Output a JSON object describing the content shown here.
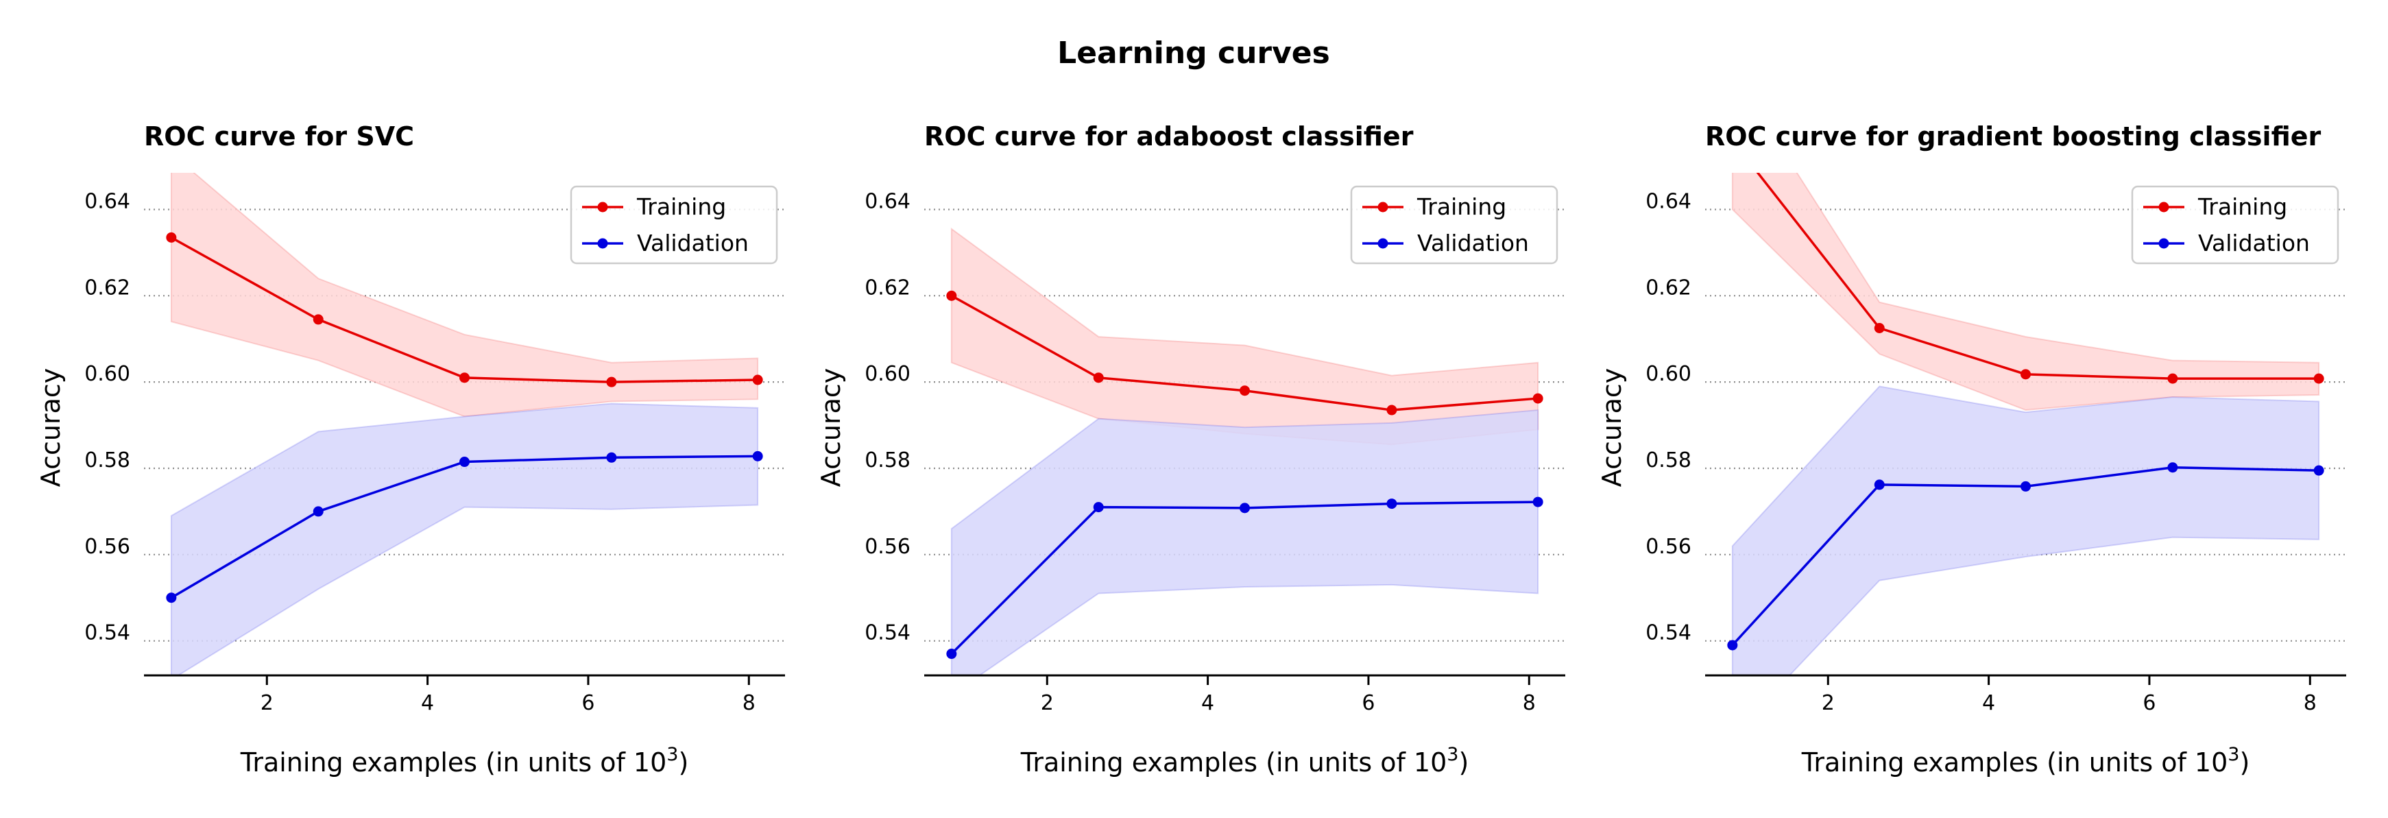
{
  "figure": {
    "title": "Learning curves"
  },
  "colors": {
    "training": "#e50000",
    "training_band": "#ffd6d6",
    "validation": "#0000e0",
    "validation_band": "#d6d6fb",
    "grid": "#8c8c8c",
    "axis": "#000000"
  },
  "chart_data": [
    {
      "type": "line",
      "title": "ROC curve for SVC",
      "xlabel": "Training examples (in units of 10",
      "xlabel_sup": "3",
      "xlabel_suffix": ")",
      "ylabel": "Accuracy",
      "xlim": [
        0.47,
        8.45
      ],
      "ylim": [
        0.532,
        0.6485
      ],
      "xticks": [
        2,
        4,
        6,
        8
      ],
      "yticks": [
        0.54,
        0.56,
        0.58,
        0.6,
        0.62,
        0.64
      ],
      "ytick_labels": [
        "0.54",
        "0.56",
        "0.58",
        "0.60",
        "0.62",
        "0.64"
      ],
      "grid": "horizontal dotted",
      "legend_position": "top-right",
      "x": [
        0.81,
        2.64,
        4.46,
        6.29,
        8.11
      ],
      "series": [
        {
          "name": "Training",
          "values": [
            0.6335,
            0.6145,
            0.601,
            0.6,
            0.6005
          ],
          "lower": [
            0.614,
            0.605,
            0.592,
            0.5955,
            0.596
          ],
          "upper": [
            0.653,
            0.624,
            0.611,
            0.6045,
            0.6055
          ]
        },
        {
          "name": "Validation",
          "values": [
            0.55,
            0.57,
            0.5815,
            0.5825,
            0.5828
          ],
          "lower": [
            0.531,
            0.552,
            0.571,
            0.5705,
            0.5715
          ],
          "upper": [
            0.569,
            0.5885,
            0.592,
            0.595,
            0.594
          ]
        }
      ]
    },
    {
      "type": "line",
      "title": "ROC curve for adaboost classifier",
      "xlabel": "Training examples (in units of 10",
      "xlabel_sup": "3",
      "xlabel_suffix": ")",
      "ylabel": "Accuracy",
      "xlim": [
        0.47,
        8.45
      ],
      "ylim": [
        0.532,
        0.6485
      ],
      "xticks": [
        2,
        4,
        6,
        8
      ],
      "yticks": [
        0.54,
        0.56,
        0.58,
        0.6,
        0.62,
        0.64
      ],
      "ytick_labels": [
        "0.54",
        "0.56",
        "0.58",
        "0.60",
        "0.62",
        "0.64"
      ],
      "grid": "horizontal dotted",
      "legend_position": "top-right",
      "x": [
        0.81,
        2.64,
        4.46,
        6.29,
        8.11
      ],
      "series": [
        {
          "name": "Training",
          "values": [
            0.62,
            0.601,
            0.598,
            0.5935,
            0.5962
          ],
          "lower": [
            0.6045,
            0.5915,
            0.588,
            0.5855,
            0.589
          ],
          "upper": [
            0.6355,
            0.6105,
            0.6085,
            0.6015,
            0.6045
          ]
        },
        {
          "name": "Validation",
          "values": [
            0.537,
            0.571,
            0.5708,
            0.5718,
            0.5722
          ],
          "lower": [
            0.5275,
            0.551,
            0.5525,
            0.553,
            0.551
          ],
          "upper": [
            0.566,
            0.5915,
            0.5895,
            0.5905,
            0.5935
          ]
        }
      ]
    },
    {
      "type": "line",
      "title": "ROC curve for gradient boosting classifier",
      "xlabel": "Training examples (in units of 10",
      "xlabel_sup": "3",
      "xlabel_suffix": ")",
      "ylabel": "Accuracy",
      "xlim": [
        0.47,
        8.45
      ],
      "ylim": [
        0.532,
        0.6485
      ],
      "xticks": [
        2,
        4,
        6,
        8
      ],
      "yticks": [
        0.54,
        0.56,
        0.58,
        0.6,
        0.62,
        0.64
      ],
      "ytick_labels": [
        "0.54",
        "0.56",
        "0.58",
        "0.60",
        "0.62",
        "0.64"
      ],
      "grid": "horizontal dotted",
      "legend_position": "top-right",
      "x": [
        0.81,
        2.64,
        4.46,
        6.29,
        8.11
      ],
      "series": [
        {
          "name": "Training",
          "values": [
            0.656,
            0.6125,
            0.6018,
            0.6008,
            0.6008
          ],
          "lower": [
            0.64,
            0.6065,
            0.5935,
            0.5965,
            0.597
          ],
          "upper": [
            0.672,
            0.6185,
            0.6105,
            0.605,
            0.6045
          ]
        },
        {
          "name": "Validation",
          "values": [
            0.539,
            0.5762,
            0.5758,
            0.5802,
            0.5795
          ],
          "lower": [
            0.518,
            0.554,
            0.5595,
            0.564,
            0.5635
          ],
          "upper": [
            0.562,
            0.599,
            0.593,
            0.5965,
            0.5955
          ]
        }
      ]
    }
  ]
}
